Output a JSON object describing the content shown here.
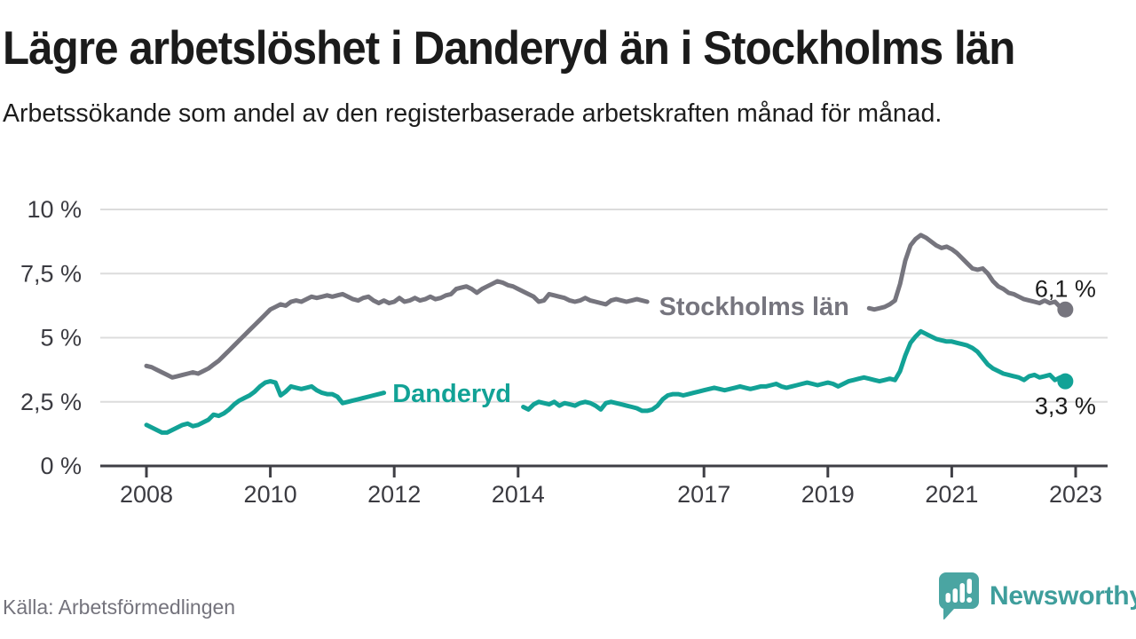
{
  "source": "Källa: Arbetsförmedlingen",
  "brand": {
    "name": "Newsworthy",
    "bubble_color": "#4aa5a2",
    "text_color": "#3f9e9c"
  },
  "chart_data": {
    "type": "line",
    "title": "Lägre arbetslöshet i Danderyd än i Stockholms län",
    "subtitle": "Arbetssökande som andel av den registerbaserade arbetskraften månad för månad.",
    "x_unit": "year",
    "x_start": 2008,
    "x_step": 0.083333,
    "xlim": [
      2007.25,
      2023.55
    ],
    "ylim": [
      0,
      10
    ],
    "grid": true,
    "y_ticks": {
      "values": [
        0,
        2.5,
        5,
        7.5,
        10
      ],
      "labels": [
        "0 %",
        "2,5 %",
        "5 %",
        "7,5 %",
        "10 %"
      ]
    },
    "x_ticks": {
      "values": [
        2008,
        2010,
        2012,
        2014,
        2017,
        2019,
        2021,
        2023
      ],
      "labels": [
        "2008",
        "2010",
        "2012",
        "2014",
        "2017",
        "2019",
        "2021",
        "2023"
      ]
    },
    "colors": {
      "axis": "#3f3f45",
      "grid": "#dcdcdc",
      "tick_text": "#3b3b41",
      "end_label_text": "#1c1c1c"
    },
    "series": [
      {
        "name": "Stockholms län",
        "color": "#76757e",
        "line_label": {
          "text": "Stockholms län",
          "x": 2017.81,
          "y": 6.19
        },
        "label_gap": [
          2016.15,
          2019.6
        ],
        "end_label": "6,1 %",
        "end_label_side": "above",
        "values": [
          3.9,
          3.85,
          3.75,
          3.65,
          3.55,
          3.45,
          3.5,
          3.55,
          3.6,
          3.65,
          3.6,
          3.7,
          3.8,
          3.95,
          4.1,
          4.3,
          4.5,
          4.7,
          4.9,
          5.1,
          5.3,
          5.5,
          5.7,
          5.9,
          6.1,
          6.2,
          6.3,
          6.25,
          6.4,
          6.45,
          6.4,
          6.5,
          6.6,
          6.55,
          6.6,
          6.65,
          6.6,
          6.65,
          6.7,
          6.6,
          6.5,
          6.45,
          6.55,
          6.6,
          6.45,
          6.35,
          6.45,
          6.35,
          6.4,
          6.55,
          6.4,
          6.45,
          6.55,
          6.45,
          6.5,
          6.6,
          6.5,
          6.55,
          6.65,
          6.7,
          6.9,
          6.95,
          7.0,
          6.9,
          6.75,
          6.9,
          7.0,
          7.1,
          7.2,
          7.15,
          7.05,
          7.0,
          6.9,
          6.8,
          6.7,
          6.6,
          6.4,
          6.45,
          6.7,
          6.65,
          6.6,
          6.55,
          6.45,
          6.4,
          6.45,
          6.55,
          6.45,
          6.4,
          6.35,
          6.3,
          6.45,
          6.5,
          6.45,
          6.4,
          6.45,
          6.5,
          6.45,
          6.4,
          6.35,
          6.3,
          6.25,
          6.2,
          6.3,
          6.35,
          6.3,
          6.25,
          6.2,
          6.25,
          6.3,
          6.25,
          6.2,
          6.15,
          6.1,
          6.05,
          6.1,
          6.15,
          6.1,
          6.05,
          6.0,
          6.05,
          6.0,
          5.95,
          5.9,
          5.85,
          5.8,
          5.78,
          5.82,
          5.85,
          5.8,
          5.82,
          5.86,
          5.9,
          5.95,
          6.0,
          6.0,
          6.05,
          6.08,
          6.1,
          6.15,
          6.18,
          6.15,
          6.1,
          6.15,
          6.2,
          6.3,
          6.45,
          7.1,
          8.0,
          8.6,
          8.85,
          9.0,
          8.9,
          8.75,
          8.6,
          8.5,
          8.55,
          8.45,
          8.3,
          8.1,
          7.9,
          7.7,
          7.65,
          7.7,
          7.5,
          7.2,
          7.0,
          6.9,
          6.75,
          6.7,
          6.6,
          6.5,
          6.45,
          6.4,
          6.35,
          6.45,
          6.35,
          6.4,
          6.2,
          6.1
        ]
      },
      {
        "name": "Danderyd",
        "color": "#12a296",
        "line_label": {
          "text": "Danderyd",
          "x": 2012.93,
          "y": 2.8
        },
        "label_gap": [
          2011.85,
          2014.02
        ],
        "end_label": "3,3 %",
        "end_label_side": "below",
        "values": [
          1.6,
          1.5,
          1.4,
          1.3,
          1.3,
          1.4,
          1.5,
          1.6,
          1.65,
          1.55,
          1.6,
          1.7,
          1.8,
          2.0,
          1.95,
          2.05,
          2.2,
          2.4,
          2.55,
          2.65,
          2.75,
          2.9,
          3.1,
          3.25,
          3.3,
          3.25,
          2.75,
          2.9,
          3.1,
          3.05,
          3.0,
          3.05,
          3.1,
          2.95,
          2.85,
          2.8,
          2.8,
          2.7,
          2.45,
          2.5,
          2.55,
          2.6,
          2.65,
          2.7,
          2.75,
          2.8,
          2.85,
          2.8,
          2.7,
          2.6,
          2.55,
          2.5,
          2.55,
          2.6,
          2.5,
          2.45,
          2.5,
          2.55,
          2.5,
          2.45,
          2.5,
          2.45,
          2.4,
          2.45,
          2.4,
          2.35,
          2.4,
          2.45,
          2.4,
          2.35,
          2.3,
          2.35,
          2.35,
          2.3,
          2.2,
          2.4,
          2.5,
          2.45,
          2.4,
          2.5,
          2.35,
          2.45,
          2.4,
          2.35,
          2.45,
          2.5,
          2.45,
          2.35,
          2.2,
          2.45,
          2.5,
          2.45,
          2.4,
          2.35,
          2.3,
          2.25,
          2.15,
          2.15,
          2.2,
          2.35,
          2.6,
          2.75,
          2.8,
          2.8,
          2.75,
          2.8,
          2.85,
          2.9,
          2.95,
          3.0,
          3.05,
          3.0,
          2.95,
          3.0,
          3.05,
          3.1,
          3.05,
          3.0,
          3.05,
          3.1,
          3.1,
          3.15,
          3.2,
          3.1,
          3.05,
          3.1,
          3.15,
          3.2,
          3.25,
          3.2,
          3.15,
          3.2,
          3.25,
          3.2,
          3.1,
          3.2,
          3.3,
          3.35,
          3.4,
          3.45,
          3.4,
          3.35,
          3.3,
          3.35,
          3.4,
          3.35,
          3.7,
          4.3,
          4.8,
          5.05,
          5.25,
          5.15,
          5.05,
          4.95,
          4.9,
          4.85,
          4.85,
          4.8,
          4.75,
          4.7,
          4.6,
          4.45,
          4.2,
          3.95,
          3.8,
          3.7,
          3.6,
          3.55,
          3.5,
          3.45,
          3.35,
          3.5,
          3.55,
          3.45,
          3.5,
          3.55,
          3.35,
          3.45,
          3.3
        ]
      }
    ]
  }
}
